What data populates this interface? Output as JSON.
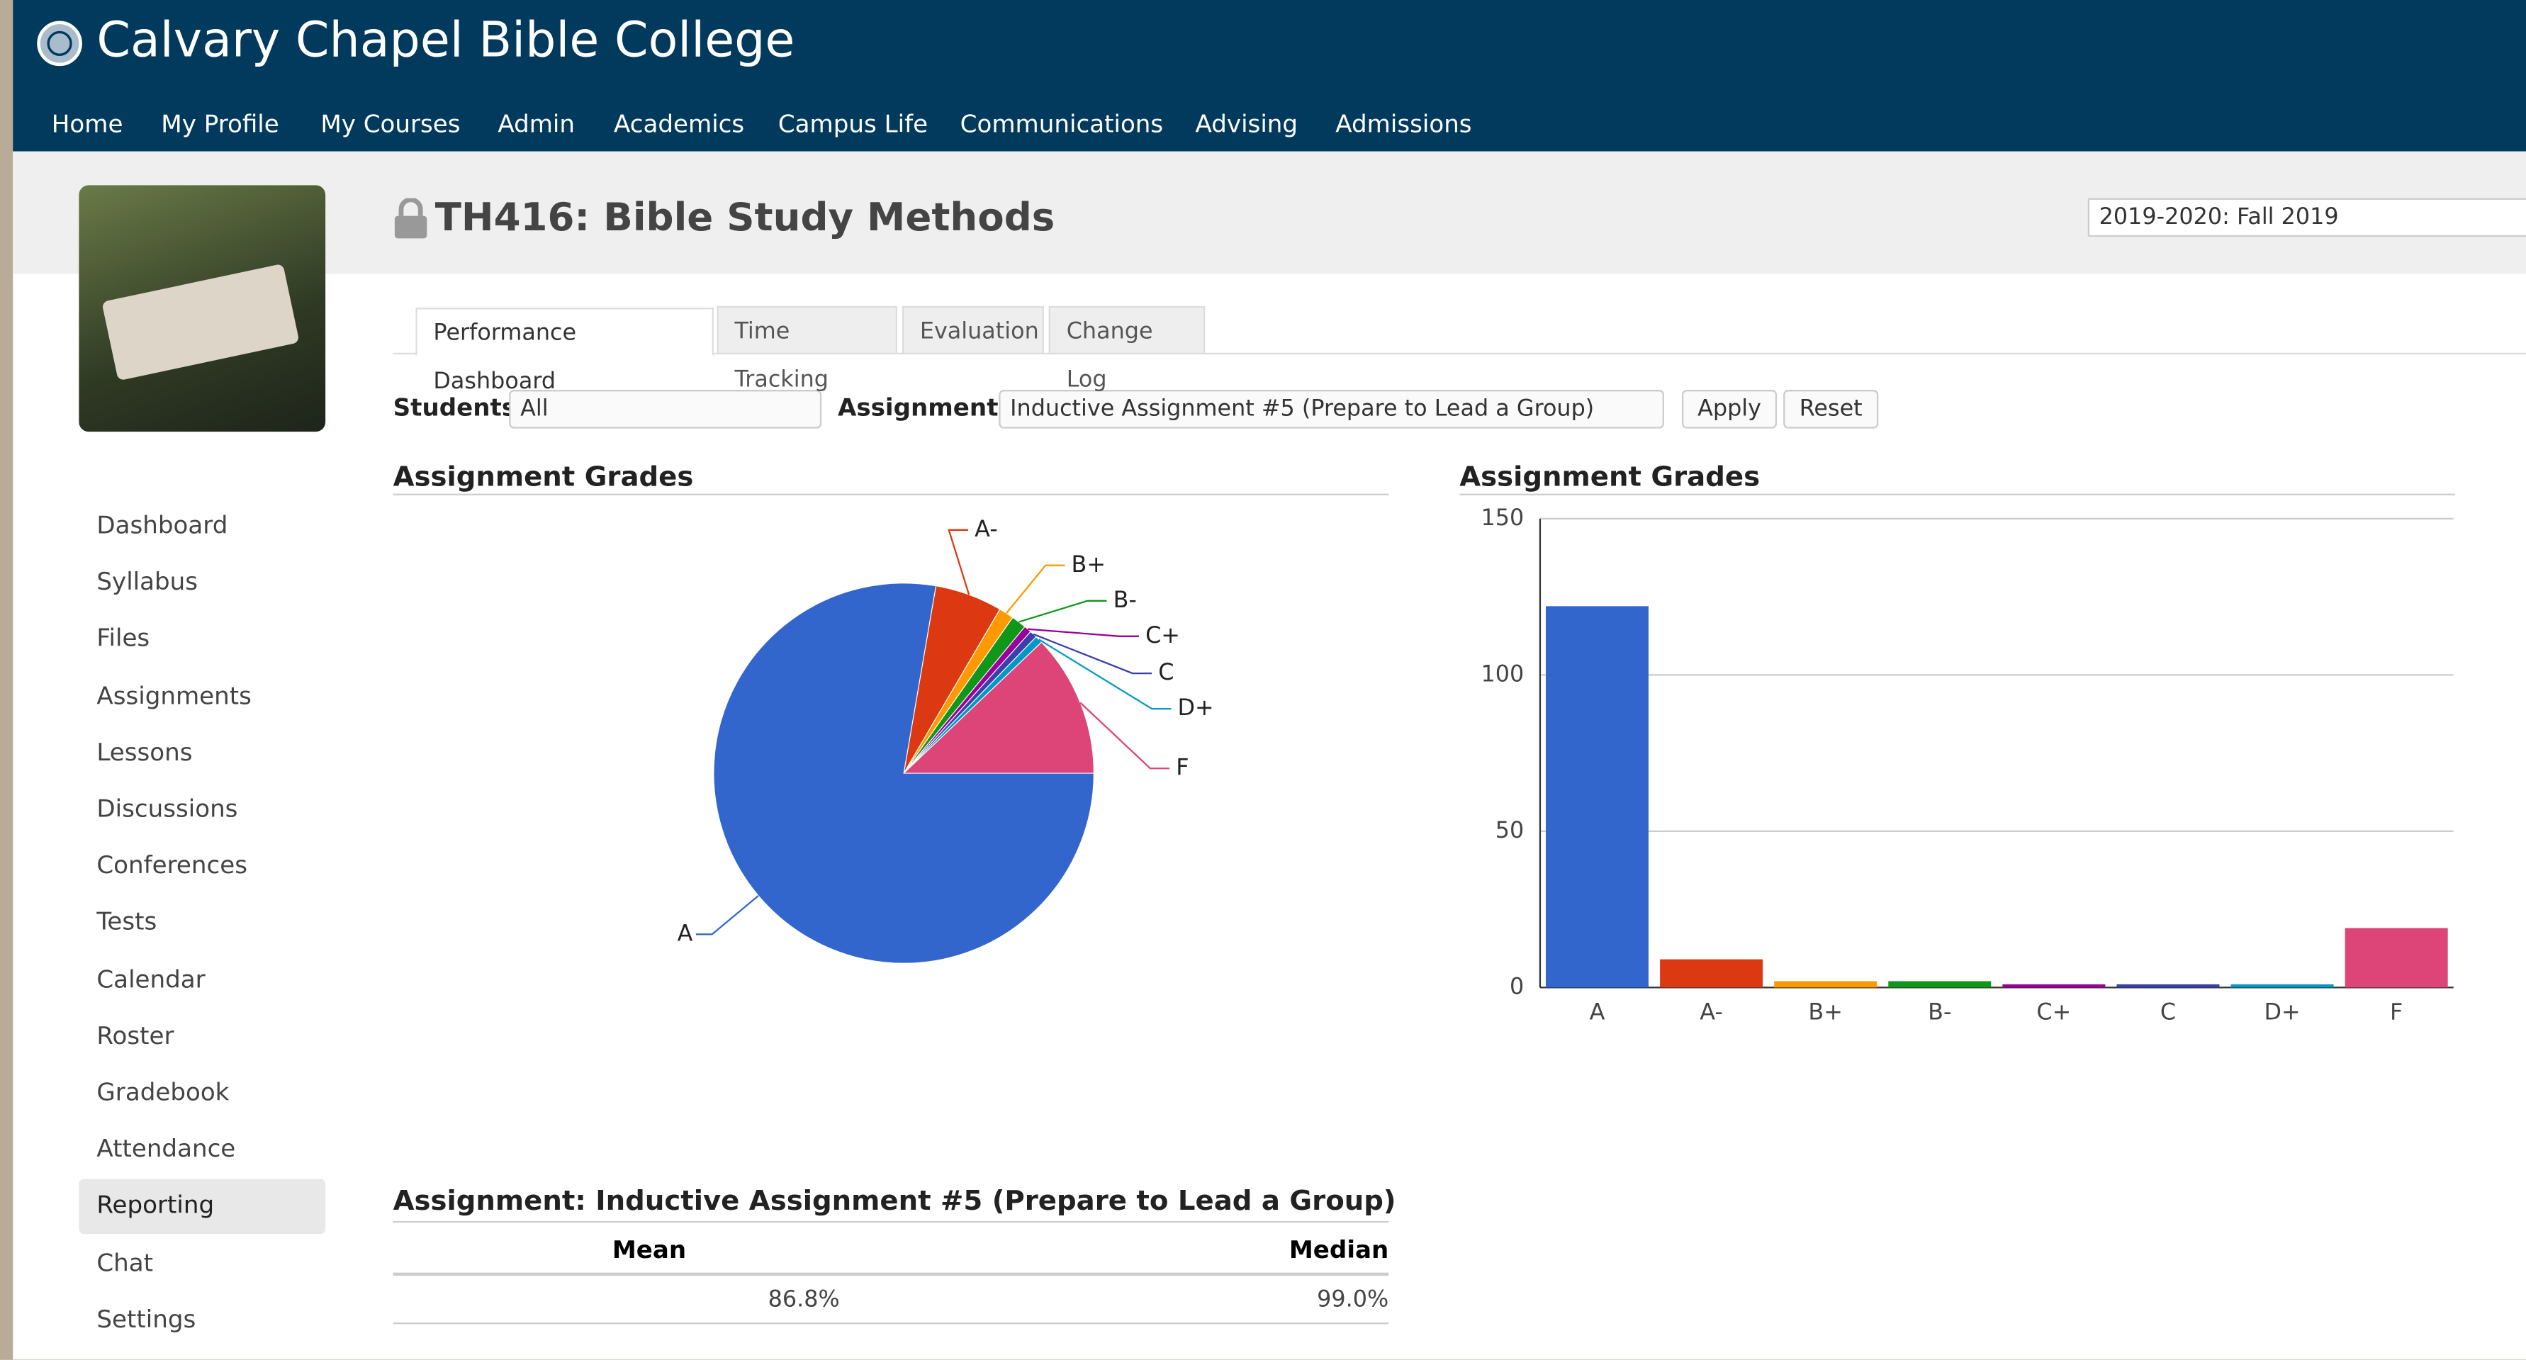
{
  "header": {
    "title": "Calvary Chapel Bible College",
    "nav": [
      "Home",
      "My Profile",
      "My Courses",
      "Admin",
      "Academics",
      "Campus Life",
      "Communications",
      "Advising",
      "Admissions"
    ]
  },
  "course": {
    "title": "TH416: Bible Study Methods",
    "term": "2019-2020: Fall 2019"
  },
  "sidebar": [
    "Dashboard",
    "Syllabus",
    "Files",
    "Assignments",
    "Lessons",
    "Discussions",
    "Conferences",
    "Tests",
    "Calendar",
    "Roster",
    "Gradebook",
    "Attendance",
    "Reporting",
    "Chat",
    "Settings"
  ],
  "tabs": [
    "Performance Dashboard",
    "Time Tracking",
    "Evaluation",
    "Change Log"
  ],
  "filters": {
    "students_label": "Students",
    "students_value": "All",
    "assignments_label": "Assignments",
    "assignments_value": "Inductive Assignment #5 (Prepare to Lead a Group)",
    "apply": "Apply",
    "reset": "Reset"
  },
  "chart_data": [
    {
      "type": "pie",
      "title": "Assignment Grades",
      "categories": [
        "A",
        "A-",
        "B+",
        "B-",
        "C+",
        "C",
        "D+",
        "F"
      ],
      "values": [
        122,
        9,
        2,
        2,
        1,
        1,
        1,
        19
      ],
      "colors": [
        "#3366cc",
        "#dc3912",
        "#ff9900",
        "#109618",
        "#990099",
        "#3b3eac",
        "#0099c6",
        "#dd4477"
      ]
    },
    {
      "type": "bar",
      "title": "Assignment Grades",
      "categories": [
        "A",
        "A-",
        "B+",
        "B-",
        "C+",
        "C",
        "D+",
        "F"
      ],
      "values": [
        122,
        9,
        2,
        2,
        1,
        1,
        1,
        19
      ],
      "colors": [
        "#3366cc",
        "#dc3912",
        "#ff9900",
        "#109618",
        "#990099",
        "#3b3eac",
        "#0099c6",
        "#dd4477"
      ],
      "ylim": [
        0,
        150
      ],
      "yticks": [
        0,
        50,
        100,
        150
      ],
      "grid": true
    }
  ],
  "table": {
    "title": "Assignment: Inductive Assignment #5 (Prepare to Lead a Group)",
    "columns": [
      "Mean",
      "Median"
    ],
    "rows": [
      [
        "86.8%",
        "99.0%"
      ]
    ]
  }
}
